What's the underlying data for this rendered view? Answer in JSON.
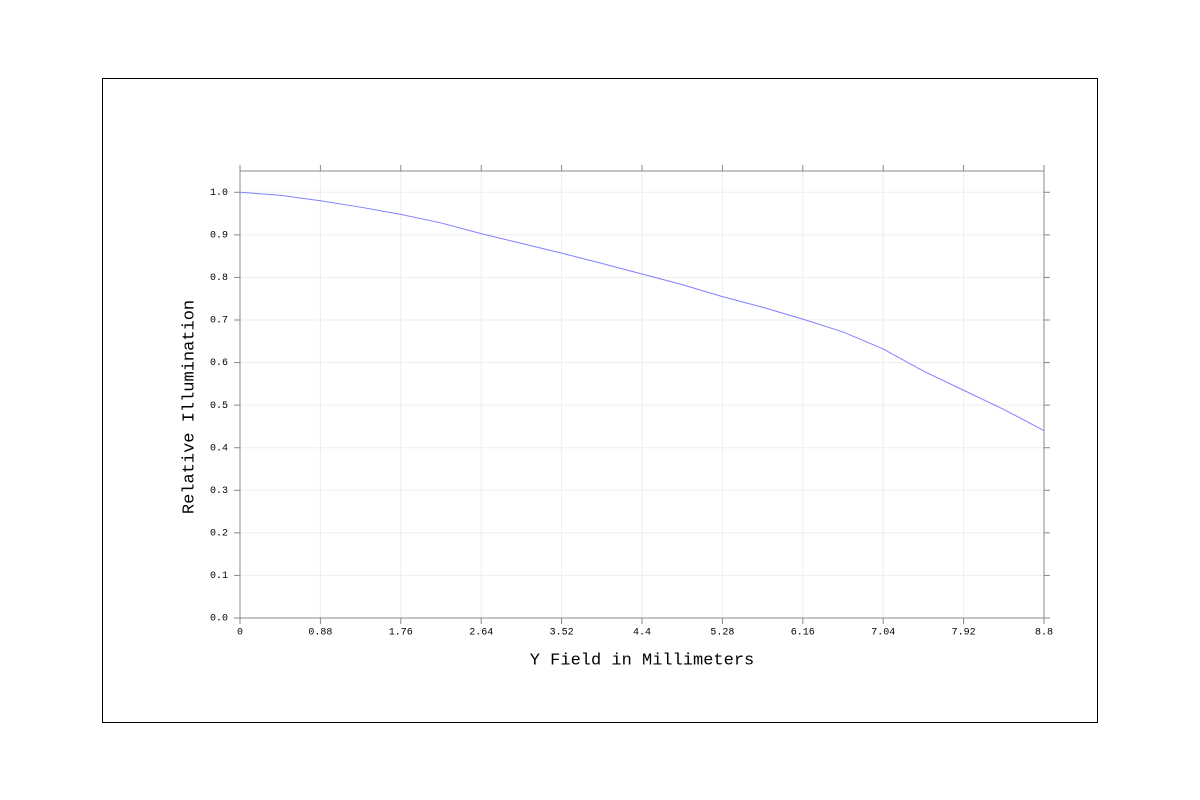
{
  "chart_data": {
    "type": "line",
    "xlabel": "Y Field in Millimeters",
    "ylabel": "Relative Illumination",
    "x": [
      0,
      0.44,
      0.88,
      1.32,
      1.76,
      2.2,
      2.64,
      3.08,
      3.52,
      3.96,
      4.4,
      4.84,
      5.28,
      5.72,
      6.16,
      6.6,
      7.04,
      7.48,
      7.92,
      8.36,
      8.8
    ],
    "series": [
      {
        "color": "#8080ff",
        "values": [
          1.0,
          0.993,
          0.98,
          0.965,
          0.948,
          0.928,
          0.903,
          0.88,
          0.857,
          0.833,
          0.808,
          0.783,
          0.755,
          0.73,
          0.702,
          0.672,
          0.632,
          0.58,
          0.535,
          0.49,
          0.44
        ]
      }
    ],
    "xlim": [
      0,
      8.8
    ],
    "ylim": [
      0,
      1.05
    ],
    "xticks": [
      0,
      0.88,
      1.76,
      2.64,
      3.52,
      4.4,
      5.28,
      6.16,
      7.04,
      7.92,
      8.8
    ],
    "yticks": [
      {
        "value": 0,
        "label": "0.0"
      },
      0.1,
      0.2,
      0.3,
      0.4,
      0.5,
      0.6,
      0.7,
      0.8,
      0.9,
      {
        "value": 1,
        "label": "1.0"
      }
    ],
    "grid": true
  }
}
